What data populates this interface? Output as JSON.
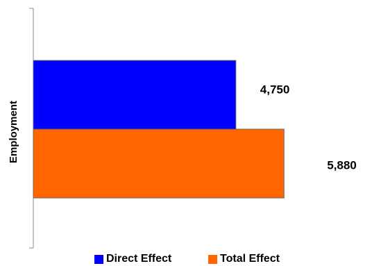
{
  "chart_data": {
    "type": "bar",
    "orientation": "horizontal",
    "categories": [
      "Employment"
    ],
    "ylabel": "Employment",
    "xlim": [
      0,
      7000
    ],
    "grid": false,
    "legend_position": "bottom",
    "series": [
      {
        "name": "Direct Effect",
        "values": [
          4750
        ],
        "label": "4,750",
        "color": "#0000ff"
      },
      {
        "name": "Total Effect",
        "values": [
          5880
        ],
        "label": "5,880",
        "color": "#ff6600"
      }
    ]
  },
  "legend": {
    "direct_label": "Direct Effect",
    "total_label": "Total Effect"
  }
}
